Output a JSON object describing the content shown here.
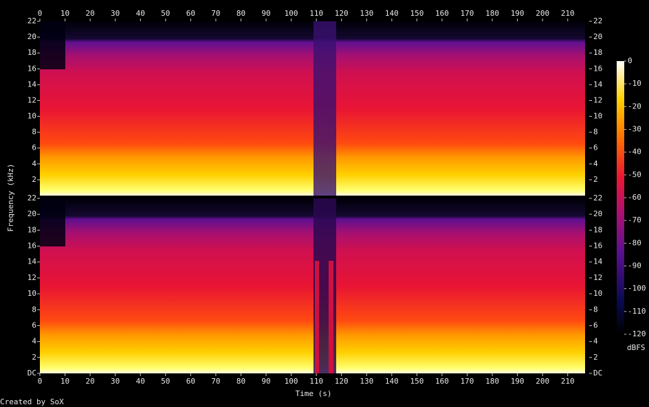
{
  "chart_data": [
    {
      "type": "spectrogram",
      "ylabel": "Frequency (kHz)",
      "xlim": [
        0,
        218
      ],
      "xticks": [
        0,
        10,
        20,
        30,
        40,
        50,
        60,
        70,
        80,
        90,
        100,
        110,
        120,
        130,
        140,
        150,
        160,
        170,
        180,
        190,
        200,
        210
      ],
      "ylim": [
        0,
        22
      ],
      "yticks": [
        2,
        4,
        6,
        8,
        10,
        12,
        14,
        16,
        18,
        20,
        22
      ]
    },
    {
      "type": "spectrogram",
      "xlabel": "Time (s)",
      "xlim": [
        0,
        218
      ],
      "xticks": [
        0,
        10,
        20,
        30,
        40,
        50,
        60,
        70,
        80,
        90,
        100,
        110,
        120,
        130,
        140,
        150,
        160,
        170,
        180,
        190,
        200,
        210
      ],
      "ylim": [
        0,
        22
      ],
      "yticks": [
        {
          "value": 0,
          "label": "DC"
        },
        2,
        4,
        6,
        8,
        10,
        12,
        14,
        16,
        18,
        20,
        22
      ],
      "colorbar": {
        "label": "dBFS",
        "lim": [
          -120,
          0
        ],
        "ticks": [
          0,
          -10,
          -20,
          -30,
          -40,
          -50,
          -60,
          -70,
          -80,
          -90,
          -100,
          -110,
          -120
        ]
      }
    }
  ],
  "footer": "Created by SoX"
}
